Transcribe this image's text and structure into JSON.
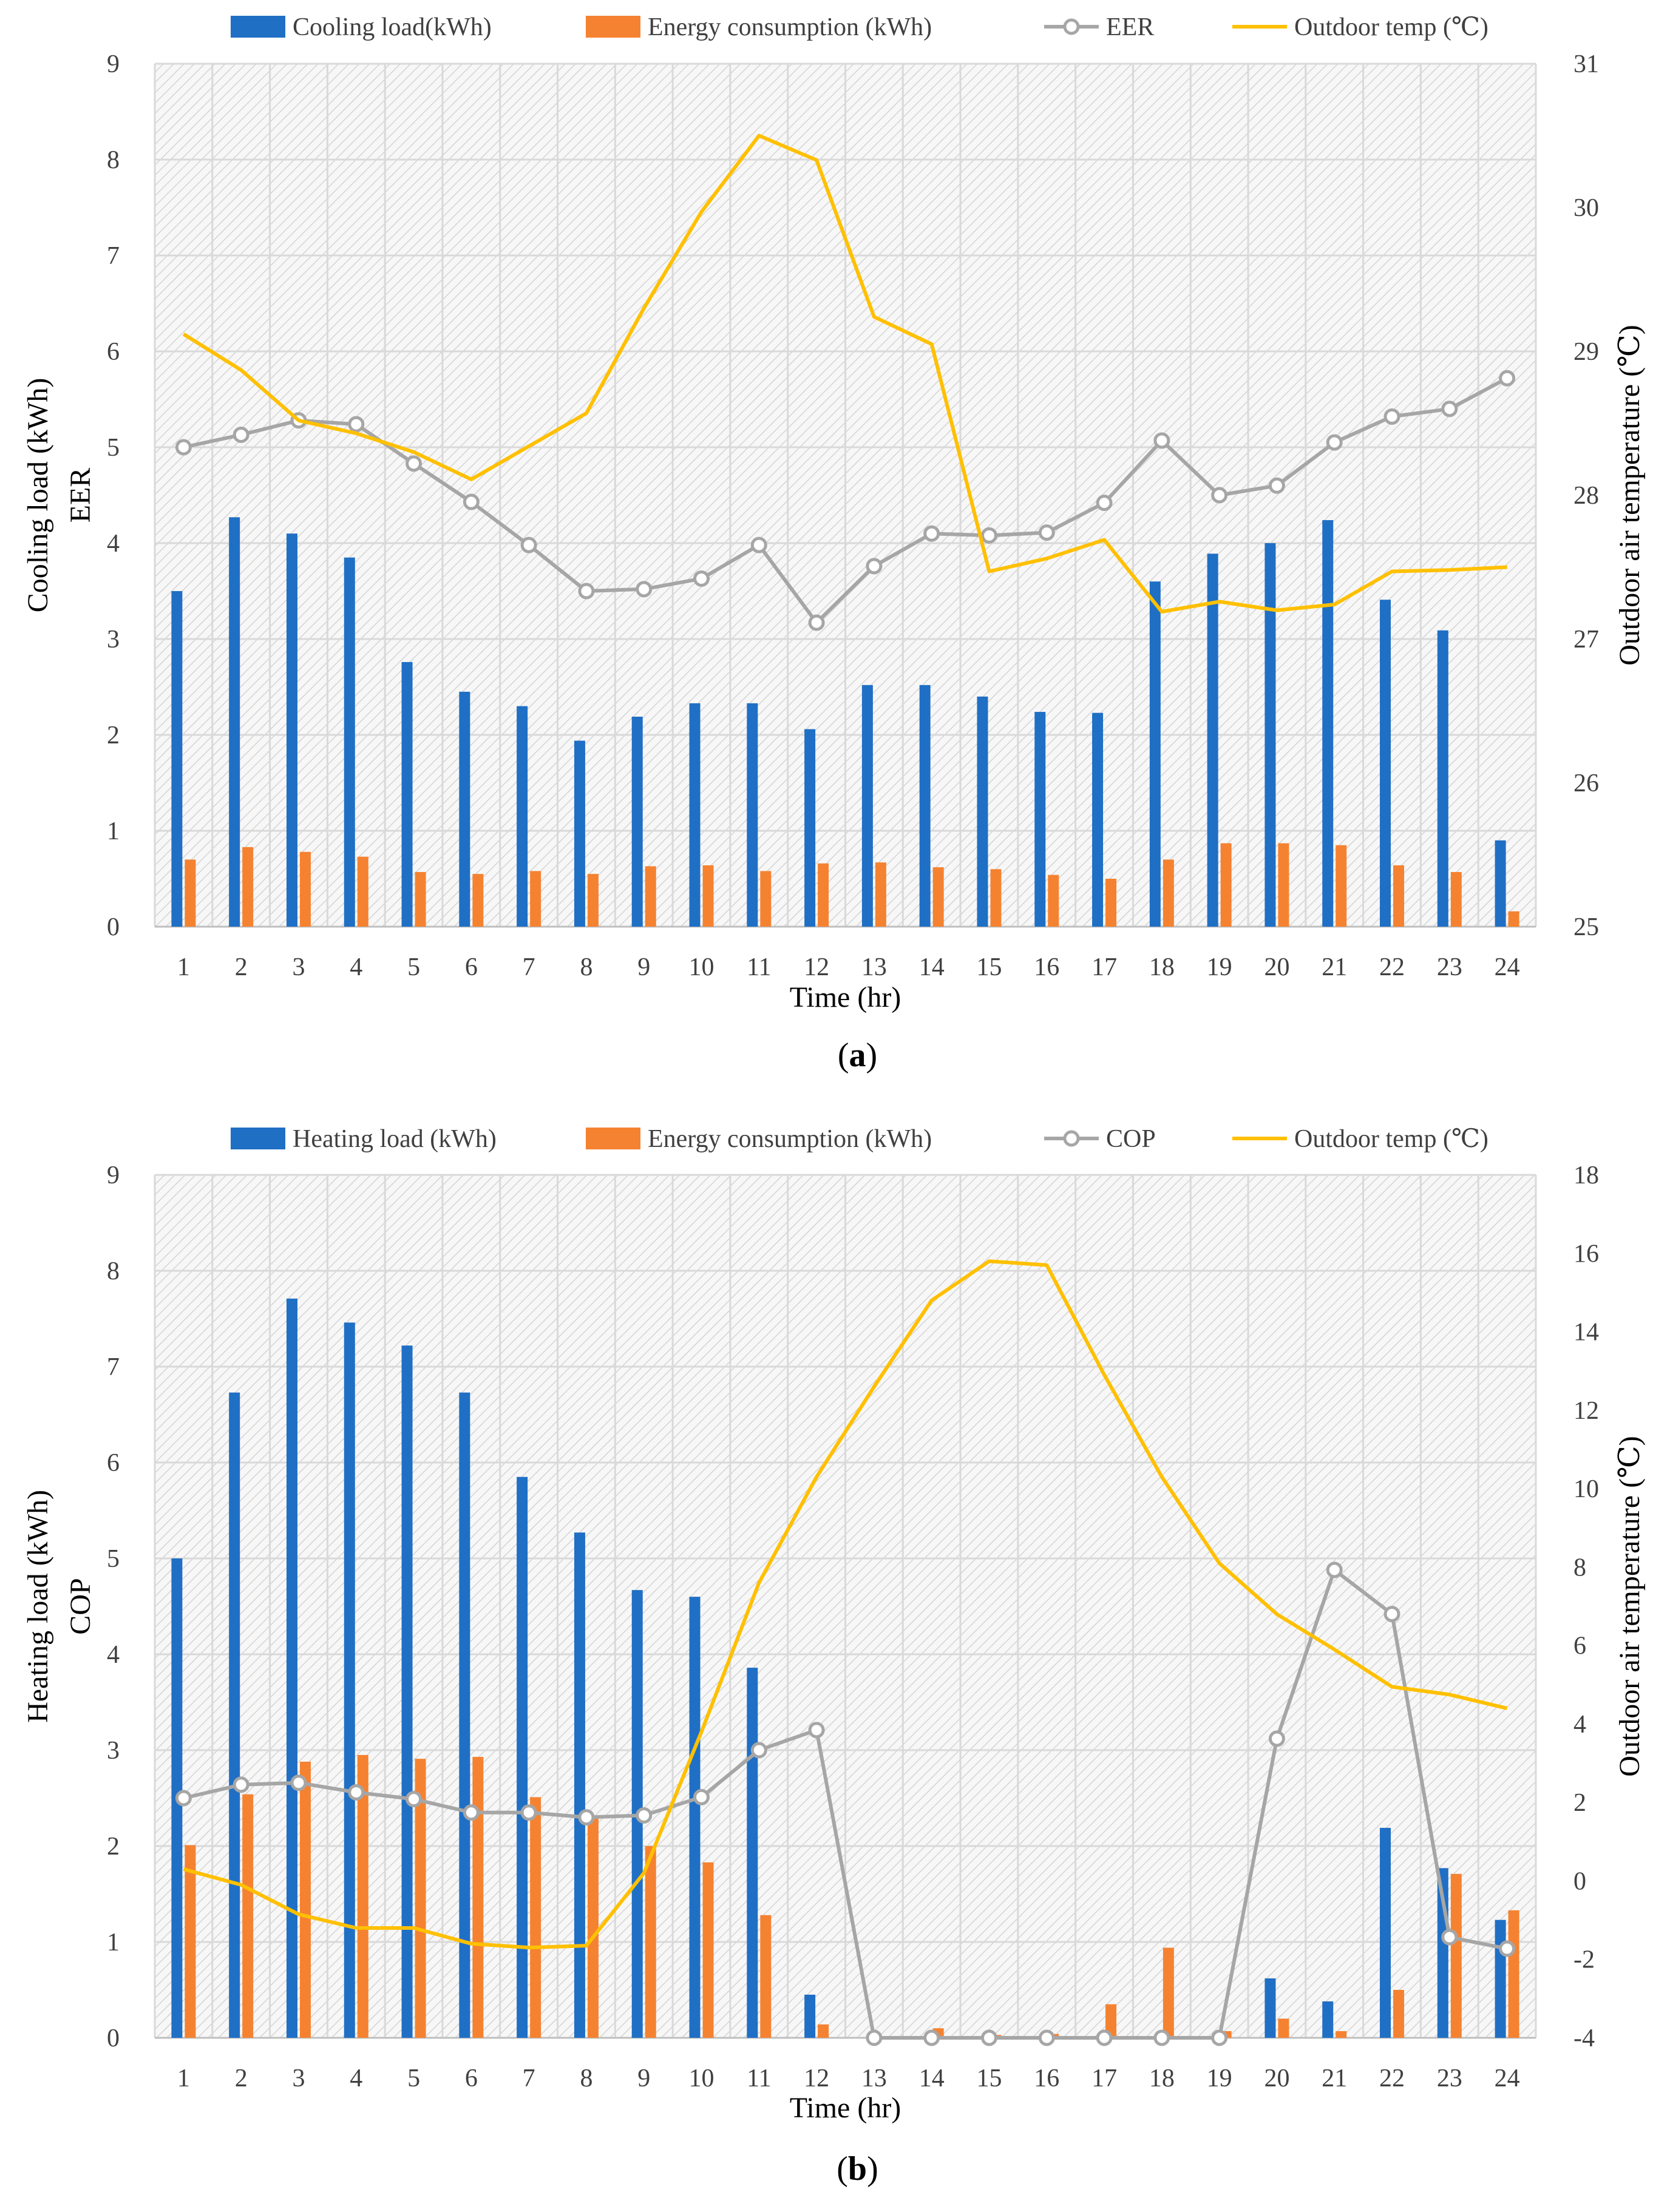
{
  "chart_data": [
    {
      "type": "bar",
      "id": "a",
      "caption_open": "(",
      "caption_letter": "a",
      "caption_close": ")",
      "xlabel": "Time (hr)",
      "ylabel_lines": [
        "Cooling load (kWh)",
        "EER"
      ],
      "y2label": "Outdoor air temperature (℃)",
      "categories": [
        "1",
        "2",
        "3",
        "4",
        "5",
        "6",
        "7",
        "8",
        "9",
        "10",
        "11",
        "12",
        "13",
        "14",
        "15",
        "16",
        "17",
        "18",
        "19",
        "20",
        "21",
        "22",
        "23",
        "24"
      ],
      "ylim": [
        0,
        9
      ],
      "yticks": [
        "0",
        "1",
        "2",
        "3",
        "4",
        "5",
        "6",
        "7",
        "8",
        "9"
      ],
      "y2lim": [
        25,
        31
      ],
      "y2ticks": [
        "25",
        "26",
        "27",
        "28",
        "29",
        "30",
        "31"
      ],
      "legend": [
        "Cooling load(kWh)",
        "Energy consumption (kWh)",
        "EER",
        "Outdoor temp (℃)"
      ],
      "series": [
        {
          "name": "Cooling load(kWh)",
          "kind": "bar",
          "axis": "left",
          "color": "#1f6fc5",
          "values": [
            3.5,
            4.27,
            4.1,
            3.85,
            2.76,
            2.45,
            2.3,
            1.94,
            2.19,
            2.33,
            2.33,
            2.06,
            2.52,
            2.52,
            2.4,
            2.24,
            2.23,
            3.6,
            3.89,
            4.0,
            4.24,
            3.41,
            3.09,
            0.9
          ]
        },
        {
          "name": "Energy consumption (kWh)",
          "kind": "bar",
          "axis": "left",
          "color": "#f58231",
          "values": [
            0.7,
            0.83,
            0.78,
            0.73,
            0.57,
            0.55,
            0.58,
            0.55,
            0.63,
            0.64,
            0.58,
            0.66,
            0.67,
            0.62,
            0.6,
            0.54,
            0.5,
            0.7,
            0.87,
            0.87,
            0.85,
            0.64,
            0.57,
            0.16
          ]
        },
        {
          "name": "EER",
          "kind": "line-marker",
          "axis": "left",
          "color": "#a6a6a6",
          "values": [
            5.0,
            5.13,
            5.28,
            5.24,
            4.83,
            4.43,
            3.98,
            3.5,
            3.52,
            3.63,
            3.98,
            3.17,
            3.76,
            4.1,
            4.08,
            4.11,
            4.42,
            5.07,
            4.5,
            4.6,
            5.05,
            5.32,
            5.4,
            5.72
          ]
        },
        {
          "name": "Outdoor temp (℃)",
          "kind": "line",
          "axis": "right",
          "color": "#ffc000",
          "values": [
            29.12,
            28.87,
            28.52,
            28.43,
            28.3,
            28.11,
            28.34,
            28.57,
            29.3,
            29.97,
            30.5,
            30.33,
            29.24,
            29.05,
            27.47,
            27.56,
            27.69,
            27.19,
            27.26,
            27.2,
            27.24,
            27.47,
            27.48,
            27.5
          ]
        }
      ]
    },
    {
      "type": "bar",
      "id": "b",
      "caption_open": "(",
      "caption_letter": "b",
      "caption_close": ")",
      "xlabel": "Time (hr)",
      "ylabel_lines": [
        "Heating  load (kWh)",
        "COP"
      ],
      "y2label": "Outdoor air temperature (℃)",
      "categories": [
        "1",
        "2",
        "3",
        "4",
        "5",
        "6",
        "7",
        "8",
        "9",
        "10",
        "11",
        "12",
        "13",
        "14",
        "15",
        "16",
        "17",
        "18",
        "19",
        "20",
        "21",
        "22",
        "23",
        "24"
      ],
      "ylim": [
        0,
        9
      ],
      "yticks": [
        "0",
        "1",
        "2",
        "3",
        "4",
        "5",
        "6",
        "7",
        "8",
        "9"
      ],
      "y2lim": [
        -4,
        18
      ],
      "y2ticks": [
        "-4",
        "-2",
        "0",
        "2",
        "4",
        "6",
        "8",
        "10",
        "12",
        "14",
        "16",
        "18"
      ],
      "legend": [
        "Heating load (kWh)",
        "Energy consumption (kWh)",
        "COP",
        "Outdoor temp (℃)"
      ],
      "series": [
        {
          "name": "Heating load (kWh)",
          "kind": "bar",
          "axis": "left",
          "color": "#1f6fc5",
          "values": [
            5.0,
            6.73,
            7.71,
            7.46,
            7.22,
            6.73,
            5.85,
            5.27,
            4.67,
            4.6,
            3.86,
            0.45,
            0,
            0,
            0,
            0,
            0,
            0,
            0,
            0.62,
            0.38,
            2.19,
            1.77,
            1.23
          ]
        },
        {
          "name": "Energy consumption (kWh)",
          "kind": "bar",
          "axis": "left",
          "color": "#f58231",
          "values": [
            2.01,
            2.54,
            2.88,
            2.95,
            2.91,
            2.93,
            2.51,
            2.3,
            2.0,
            1.83,
            1.28,
            0.14,
            0,
            0.1,
            0.03,
            0.04,
            0.35,
            0.94,
            0.07,
            0.2,
            0.07,
            0.5,
            1.71,
            1.33
          ]
        },
        {
          "name": "COP",
          "kind": "line-marker",
          "axis": "left",
          "color": "#a6a6a6",
          "values": [
            2.5,
            2.64,
            2.66,
            2.56,
            2.49,
            2.35,
            2.35,
            2.3,
            2.32,
            2.51,
            3.0,
            3.21,
            0,
            0,
            0,
            0,
            0,
            0,
            0,
            3.12,
            4.88,
            4.42,
            1.05,
            0.93
          ]
        },
        {
          "name": "Outdoor temp (℃)",
          "kind": "line",
          "axis": "right",
          "color": "#ffc000",
          "values": [
            0.3,
            -0.1,
            -0.85,
            -1.2,
            -1.2,
            -1.6,
            -1.7,
            -1.65,
            0.2,
            3.8,
            7.6,
            10.3,
            12.6,
            14.8,
            15.8,
            15.7,
            12.9,
            10.3,
            8.1,
            6.8,
            5.9,
            4.95,
            4.75,
            4.4
          ]
        }
      ]
    }
  ]
}
